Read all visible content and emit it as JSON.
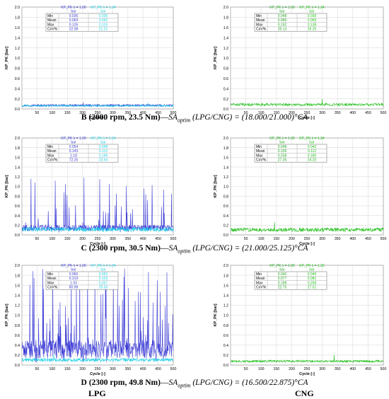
{
  "colors": {
    "lpg_series": "#3a3ad6",
    "lpg_stats": "#3a3ad6",
    "cng_stats": "#1fd1e6",
    "cng_series": "#22c01a",
    "cng_table": "#22aa22",
    "grid": "#dcdcdc"
  },
  "axes": {
    "ylabel": "KP_PK [bar]",
    "xlabel": "Cycle [-]",
    "ylim": [
      0,
      2
    ],
    "xlim": [
      0,
      500
    ],
    "yticks": [
      "0.0",
      "0.2",
      "0.4",
      "0.6",
      "0.8",
      "1.0",
      "1.2",
      "1.4",
      "1.6",
      "1.8",
      "2.0"
    ],
    "xticks": [
      "50",
      "100",
      "150",
      "200",
      "250",
      "300",
      "350",
      "400",
      "450",
      "500"
    ]
  },
  "stat_rows": [
    "Min",
    "Mean",
    "Max",
    "CoV%"
  ],
  "captions": {
    "B": {
      "case": "B (2000 rpm, 23.5 Nm)",
      "dash": "—",
      "sa": "SA",
      "sub": "optim",
      "fuel": " (LPG/CNG) = (18.000/21.000)°CA"
    },
    "C": {
      "case": "C (2300 rpm, 30.5 Nm)",
      "dash": "—",
      "sa": "SA",
      "sub": "optim",
      "fuel": " (LPG/CNG) = (21.000/25.125)°CA"
    },
    "D": {
      "case": "D (2300 rpm, 49.8 Nm)",
      "dash": "—",
      "sa": "SA",
      "sub": "optim",
      "fuel": " (LPG/CNG) = (16.500/22.875)°CA"
    }
  },
  "footer": {
    "lpg": "LPG",
    "cng": "CNG"
  },
  "chart_data": [
    {
      "type": "line",
      "id": "B-LPG",
      "case": "B",
      "fuel": "LPG",
      "legend": [
        {
          "title": "KP_PK λ = 1.00",
          "unit": "bar",
          "values": [
            "0.036",
            "0.069",
            "0.126",
            "22.08"
          ]
        },
        {
          "title": "KP_PK λ = 1.24",
          "unit": "bar",
          "values": [
            "0.036",
            "0.062",
            "0.119",
            "21.22"
          ]
        }
      ],
      "series": [
        {
          "name": "KP_PK λ = 1.00",
          "mean": 0.069,
          "min": 0.036,
          "max": 0.126
        },
        {
          "name": "KP_PK λ = 1.24",
          "mean": 0.062,
          "min": 0.036,
          "max": 0.119
        }
      ]
    },
    {
      "type": "line",
      "id": "B-CNG",
      "case": "B",
      "fuel": "CNG",
      "legend": [
        {
          "title": "KP_PK λ = 1.00",
          "unit": "bar",
          "values": [
            "0.048",
            "0.086",
            "0.192",
            "26.13"
          ]
        },
        {
          "title": "KP_PK λ = 1.24",
          "unit": "bar",
          "values": [
            "0.035",
            "0.069",
            "0.138",
            "26.25"
          ]
        }
      ],
      "series": [
        {
          "name": "KP_PK λ = 1.00",
          "mean": 0.086,
          "min": 0.048,
          "max": 0.192
        }
      ]
    },
    {
      "type": "line",
      "id": "C-LPG",
      "case": "C",
      "fuel": "LPG",
      "legend": [
        {
          "title": "KP_PK λ = 1.00",
          "unit": "bar",
          "values": [
            "0.054",
            "0.143",
            "1.18",
            "72.25"
          ]
        },
        {
          "title": "KP_PK λ = 1.24",
          "unit": "bar",
          "values": [
            "0.048",
            "0.113",
            "0.196",
            "23.54"
          ]
        }
      ],
      "series": [
        {
          "name": "KP_PK λ = 1.00",
          "mean": 0.143,
          "min": 0.054,
          "max": 1.18
        },
        {
          "name": "KP_PK λ = 1.24",
          "mean": 0.113,
          "min": 0.048,
          "max": 0.196
        }
      ]
    },
    {
      "type": "line",
      "id": "C-CNG",
      "case": "C",
      "fuel": "CNG",
      "legend": [
        {
          "title": "KP_PK λ = 1.00",
          "unit": "bar",
          "values": [
            "0.048",
            "0.106",
            "0.258",
            "27.35"
          ]
        },
        {
          "title": "KP_PK λ = 1.24",
          "unit": "bar",
          "values": [
            "0.042",
            "0.112",
            "0.180",
            "24.20"
          ]
        }
      ],
      "series": [
        {
          "name": "KP_PK λ = 1.00",
          "mean": 0.106,
          "min": 0.048,
          "max": 0.258
        }
      ]
    },
    {
      "type": "line",
      "id": "D-LPG",
      "case": "D",
      "fuel": "LPG",
      "legend": [
        {
          "title": "KP_PK λ = 1.00",
          "unit": "bar",
          "values": [
            "0.060",
            "0.319",
            "1.93",
            "80.98"
          ]
        },
        {
          "title": "KP_PK λ = 1.24",
          "unit": "bar",
          "values": [
            "0.052",
            "0.103",
            "0.207",
            "25.03"
          ]
        }
      ],
      "series": [
        {
          "name": "KP_PK λ = 1.00",
          "mean": 0.319,
          "min": 0.06,
          "max": 1.93
        },
        {
          "name": "KP_PK λ = 1.24",
          "mean": 0.103,
          "min": 0.052,
          "max": 0.207
        }
      ]
    },
    {
      "type": "line",
      "id": "D-CNG",
      "case": "D",
      "fuel": "CNG",
      "legend": [
        {
          "title": "KP_PK λ = 1.00",
          "unit": "bar",
          "values": [
            "0.042",
            "0.077",
            "0.198",
            "22.75"
          ]
        },
        {
          "title": "KP_PK λ = 1.26",
          "unit": "bar",
          "values": [
            "0.040",
            "0.081",
            "0.258",
            "27.51"
          ]
        }
      ],
      "series": [
        {
          "name": "KP_PK λ = 1.00",
          "mean": 0.077,
          "min": 0.042,
          "max": 0.198
        }
      ]
    }
  ]
}
